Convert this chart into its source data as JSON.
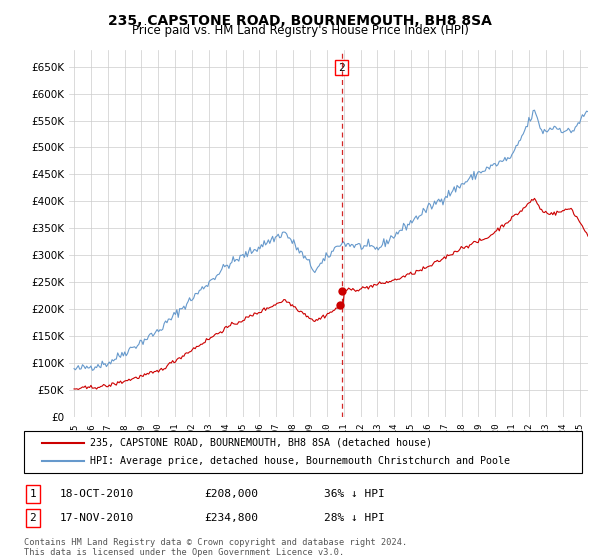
{
  "title": "235, CAPSTONE ROAD, BOURNEMOUTH, BH8 8SA",
  "subtitle": "Price paid vs. HM Land Registry's House Price Index (HPI)",
  "hpi_color": "#6699cc",
  "price_color": "#cc0000",
  "background_color": "#ffffff",
  "grid_color": "#cccccc",
  "ylim": [
    0,
    680000
  ],
  "yticks": [
    0,
    50000,
    100000,
    150000,
    200000,
    250000,
    300000,
    350000,
    400000,
    450000,
    500000,
    550000,
    600000,
    650000
  ],
  "transaction1_date": "18-OCT-2010",
  "transaction1_price": 208000,
  "transaction1_pct": "36% ↓ HPI",
  "transaction1_label": "1",
  "transaction2_date": "17-NOV-2010",
  "transaction2_price": 234800,
  "transaction2_pct": "28% ↓ HPI",
  "transaction2_label": "2",
  "legend_line1": "235, CAPSTONE ROAD, BOURNEMOUTH, BH8 8SA (detached house)",
  "legend_line2": "HPI: Average price, detached house, Bournemouth Christchurch and Poole",
  "footer": "Contains HM Land Registry data © Crown copyright and database right 2024.\nThis data is licensed under the Open Government Licence v3.0."
}
